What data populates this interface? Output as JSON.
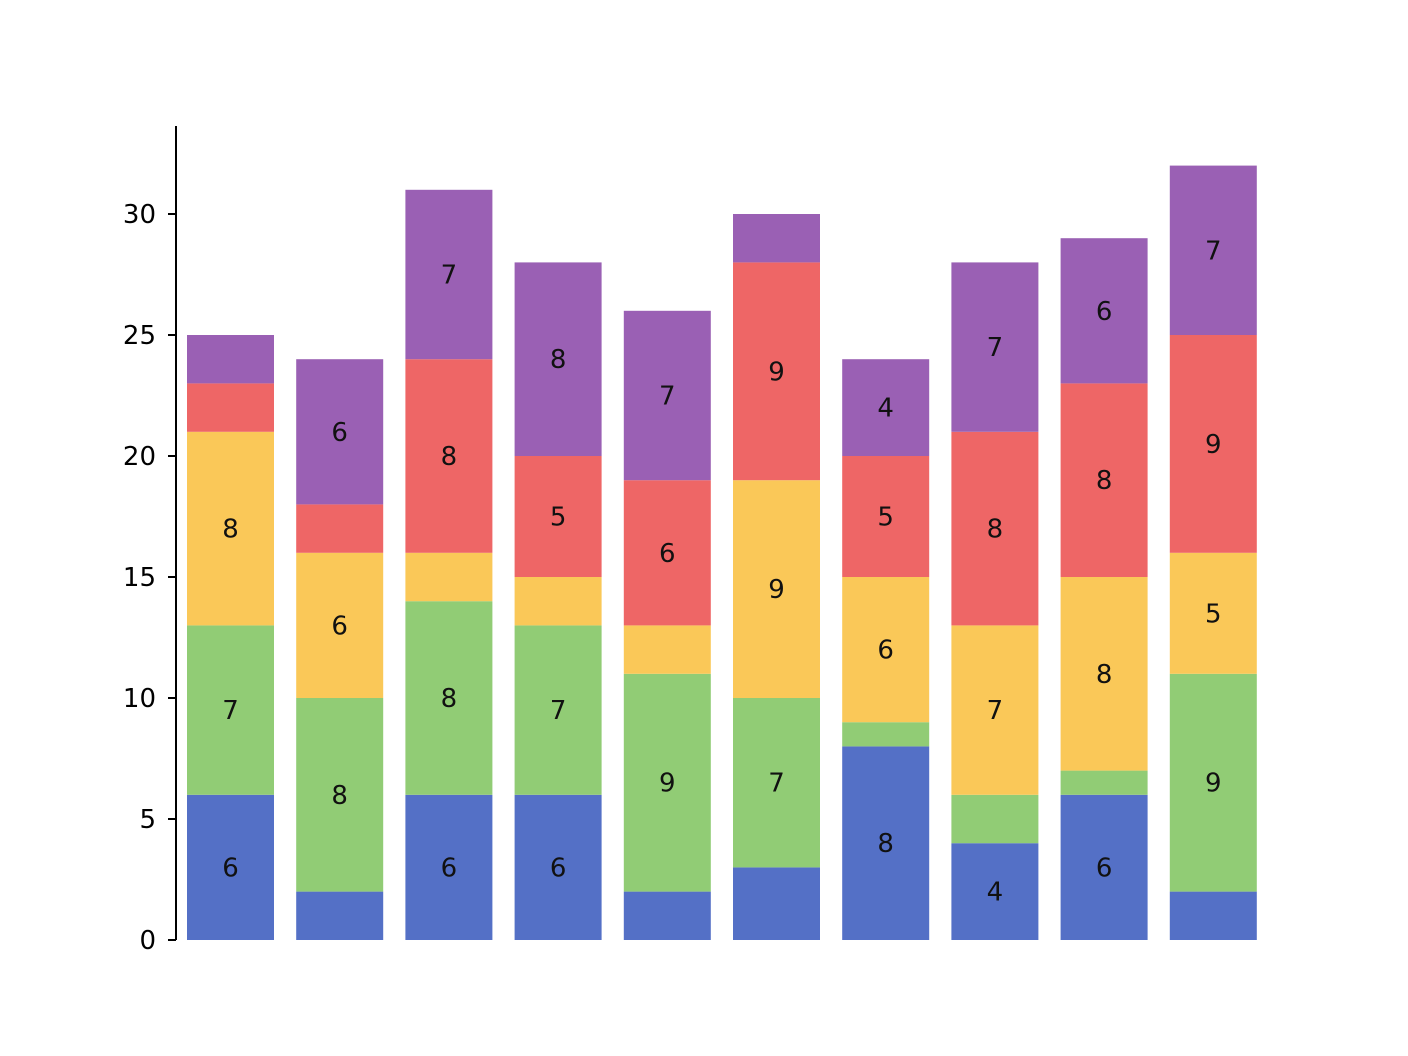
{
  "chart_data": {
    "type": "bar",
    "stacked": true,
    "categories": [
      "",
      "",
      "",
      "",
      "",
      "",
      "",
      "",
      "",
      ""
    ],
    "title": "",
    "xlabel": "",
    "ylabel": "",
    "ylim": [
      0,
      33
    ],
    "yticks": [
      "0",
      "5",
      "10",
      "15",
      "20",
      "25",
      "30"
    ],
    "grid": false,
    "legend": "none",
    "series": [
      {
        "color": "#5470c6",
        "values": [
          6,
          2,
          6,
          6,
          2,
          3,
          8,
          4,
          6,
          2
        ]
      },
      {
        "color": "#91cc75",
        "values": [
          7,
          8,
          8,
          7,
          9,
          7,
          1,
          2,
          1,
          9
        ]
      },
      {
        "color": "#fac858",
        "values": [
          8,
          6,
          2,
          2,
          2,
          9,
          6,
          7,
          8,
          5
        ]
      },
      {
        "color": "#ee6666",
        "values": [
          2,
          2,
          8,
          5,
          6,
          9,
          5,
          8,
          8,
          9
        ]
      },
      {
        "color": "#9a60b4",
        "values": [
          2,
          6,
          7,
          8,
          7,
          2,
          4,
          7,
          6,
          7
        ]
      }
    ],
    "label_threshold": 3
  }
}
